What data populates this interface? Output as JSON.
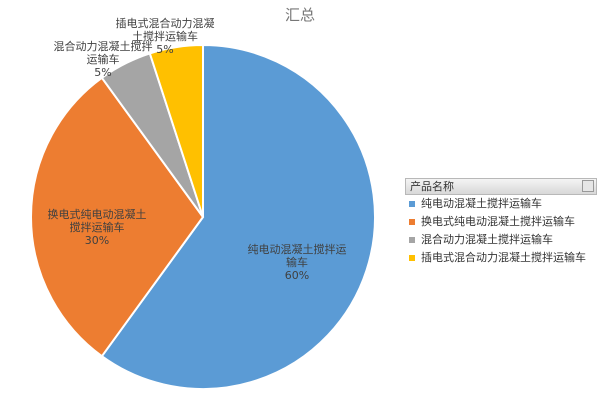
{
  "chart_data": {
    "type": "pie",
    "title": "汇总",
    "categories": [
      "纯电动混凝土搅拌运输车",
      "换电式纯电动混凝土搅拌运输车",
      "混合动力混凝土搅拌运输车",
      "插电式混合动力混凝土搅拌运输车"
    ],
    "values": [
      60,
      30,
      5,
      5
    ],
    "value_labels": [
      "60%",
      "30%",
      "5%",
      "5%"
    ],
    "colors": [
      "#5b9bd5",
      "#ed7d31",
      "#a5a5a5",
      "#ffc000"
    ],
    "legend_title": "产品名称",
    "legend": "right"
  }
}
